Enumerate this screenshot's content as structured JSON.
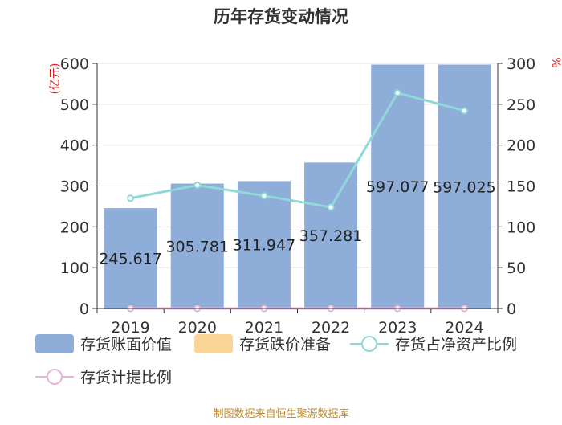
{
  "chart_data": {
    "type": "bar",
    "title": "历年存货变动情况",
    "categories": [
      "2019",
      "2020",
      "2021",
      "2022",
      "2023",
      "2024"
    ],
    "series": [
      {
        "name": "存货账面价值",
        "kind": "bar",
        "axis": "left",
        "values": [
          245.617,
          305.781,
          311.947,
          357.281,
          597.077,
          597.025
        ],
        "labels": [
          "245.617",
          "305.781",
          "311.947",
          "357.281",
          "597.077",
          "597.025"
        ],
        "color": "#8eadd8"
      },
      {
        "name": "存货跌价准备",
        "kind": "bar",
        "axis": "left",
        "values": [
          0,
          0,
          0,
          0,
          0,
          0
        ],
        "color": "#fbd595"
      },
      {
        "name": "存货占净资产比例",
        "kind": "line",
        "axis": "right",
        "values": [
          135,
          151,
          138,
          124,
          264,
          242
        ],
        "color": "#8fd9d9"
      },
      {
        "name": "存货计提比例",
        "kind": "line",
        "axis": "right",
        "values": [
          0,
          0,
          0,
          0,
          0,
          0
        ],
        "color": "#e6b3db"
      }
    ],
    "y_left": {
      "label": "(亿元)",
      "min": 0,
      "max": 600,
      "ticks": [
        0,
        100,
        200,
        300,
        400,
        500,
        600
      ]
    },
    "y_right": {
      "label": "%",
      "min": 0,
      "max": 300,
      "ticks": [
        0,
        50,
        100,
        150,
        200,
        250,
        300
      ]
    },
    "grid": true,
    "legend_position": "bottom"
  },
  "footer": {
    "source": "制图数据来自恒生聚源数据库"
  }
}
